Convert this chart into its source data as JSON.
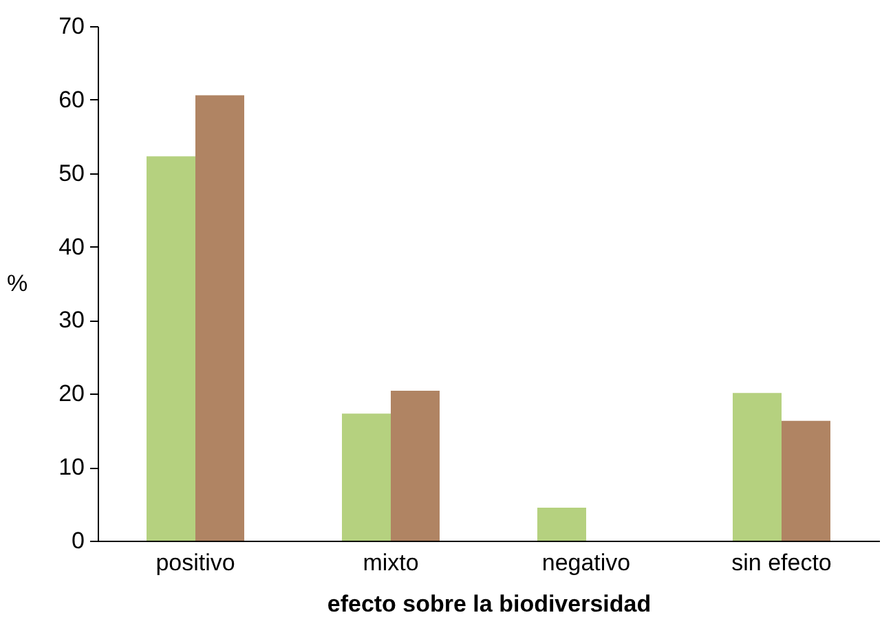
{
  "chart_data": {
    "type": "bar",
    "xlabel": "efecto sobre la biodiversidad",
    "ylabel": "%",
    "categories": [
      "positivo",
      "mixto",
      "negativo",
      "sin efecto"
    ],
    "series": [
      {
        "color": "#b5d17f",
        "values": [
          52.3,
          17.3,
          4.5,
          20.1
        ]
      },
      {
        "color": "#b08463",
        "values": [
          60.6,
          20.4,
          0,
          16.3
        ]
      }
    ],
    "ylim": [
      0,
      70
    ],
    "yticks": [
      0,
      10,
      20,
      30,
      40,
      50,
      60,
      70
    ],
    "grid": false,
    "legend": false
  }
}
